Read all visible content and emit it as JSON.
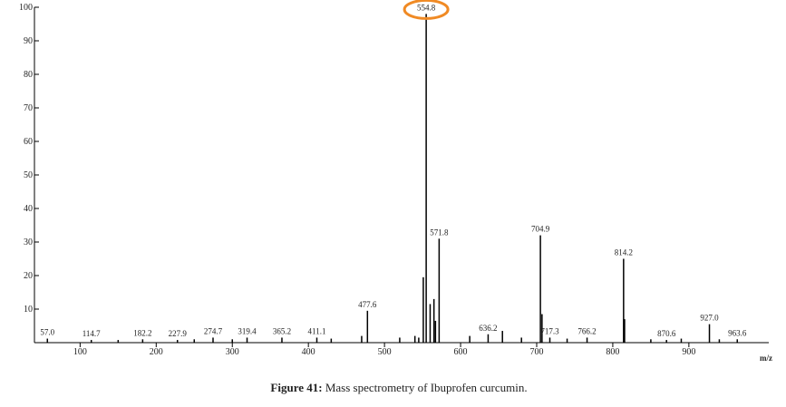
{
  "chart_data": {
    "type": "stick",
    "x_label": "m/z",
    "x": [
      57.0,
      114.7,
      150,
      182.2,
      227.9,
      250,
      274.7,
      300,
      319.4,
      365.2,
      411.1,
      430,
      470,
      477.6,
      520,
      540,
      545,
      551,
      554.8,
      560,
      565,
      567,
      571.8,
      612,
      636.2,
      655,
      680,
      704.9,
      707,
      717.3,
      740,
      766.2,
      814.2,
      815.5,
      850,
      870.6,
      890,
      927.0,
      940,
      963.6
    ],
    "values": [
      1.2,
      0.8,
      0.8,
      1,
      0.8,
      1,
      1.5,
      1,
      1.5,
      1.5,
      1.5,
      1.2,
      2,
      9.5,
      1.5,
      2,
      1.5,
      19.5,
      98,
      11.5,
      13,
      6.5,
      31,
      2,
      2.5,
      3.5,
      1.5,
      32,
      8.5,
      1.5,
      1.2,
      1.5,
      25,
      7,
      1,
      0.8,
      1.2,
      5.5,
      1,
      1
    ],
    "x_labels": [
      "57.0",
      "114.7",
      null,
      "182.2",
      "227.9",
      null,
      "274.7",
      null,
      "319.4",
      "365.2",
      "411.1",
      null,
      null,
      "477.6",
      null,
      null,
      null,
      null,
      "554.8",
      null,
      null,
      null,
      "571.8",
      null,
      "636.2",
      null,
      null,
      "704.9",
      null,
      "717.3",
      null,
      "766.2",
      "814.2",
      null,
      null,
      "870.6",
      null,
      "927.0",
      null,
      "963.6"
    ],
    "color": "#000000",
    "xlim": [
      40,
      1005
    ],
    "ylim": [
      0,
      100
    ],
    "xticks": [
      100,
      200,
      300,
      400,
      500,
      600,
      700,
      800,
      900
    ],
    "yticks": [
      10,
      20,
      30,
      40,
      50,
      60,
      70,
      80,
      90,
      100
    ],
    "highlight_color": "#f08a24"
  },
  "caption": {
    "label": "Figure 41:",
    "text": "Mass spectrometry of Ibuprofen curcumin."
  }
}
